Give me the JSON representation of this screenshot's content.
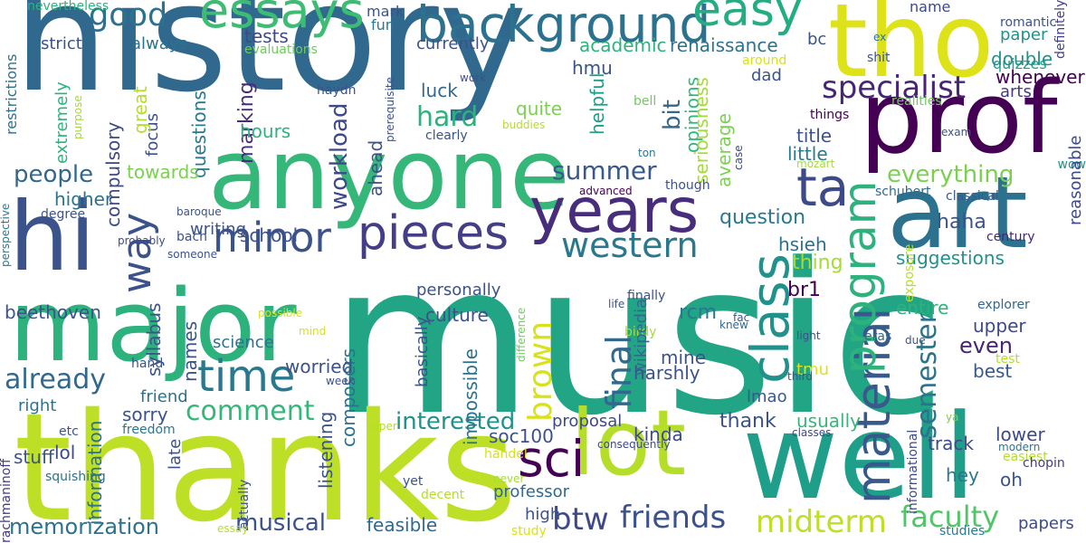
{
  "words": [
    {
      "text": "history",
      "color": "#31688e"
    },
    {
      "text": "music",
      "color": "#21a585"
    },
    {
      "text": "thanks",
      "color": "#bddf26"
    },
    {
      "text": "anyone",
      "color": "#35b779"
    },
    {
      "text": "prof",
      "color": "#440154"
    },
    {
      "text": "major",
      "color": "#2db27d"
    },
    {
      "text": "tho",
      "color": "#dde318"
    },
    {
      "text": "well",
      "color": "#1f9e89"
    },
    {
      "text": "art",
      "color": "#2c728e"
    },
    {
      "text": "lot",
      "color": "#b5de2b"
    },
    {
      "text": "hi",
      "color": "#3b528b"
    },
    {
      "text": "years",
      "color": "#472d7b"
    },
    {
      "text": "background",
      "color": "#2c728e"
    },
    {
      "text": "essays",
      "color": "#3dbc74"
    },
    {
      "text": "easy",
      "color": "#25ac82"
    },
    {
      "text": "pieces",
      "color": "#433e85"
    },
    {
      "text": "minor",
      "color": "#3b528b"
    },
    {
      "text": "time",
      "color": "#2a788e"
    },
    {
      "text": "sci",
      "color": "#440154"
    },
    {
      "text": "ta",
      "color": "#3e4989"
    },
    {
      "text": "class",
      "color": "#21918c"
    },
    {
      "text": "western",
      "color": "#2a788e"
    },
    {
      "text": "material",
      "color": "#38598c"
    },
    {
      "text": "program",
      "color": "#2db27d"
    },
    {
      "text": "specialist",
      "color": "#482475"
    },
    {
      "text": "way",
      "color": "#3b528b"
    },
    {
      "text": "good",
      "color": "#2c728e"
    },
    {
      "text": "already",
      "color": "#31688e"
    },
    {
      "text": "comment",
      "color": "#35b779"
    },
    {
      "text": "btw",
      "color": "#3e4989"
    },
    {
      "text": "friends",
      "color": "#3b528b"
    },
    {
      "text": "midterm",
      "color": "#bddf26"
    },
    {
      "text": "faculty",
      "color": "#52c569"
    },
    {
      "text": "final",
      "color": "#31688e"
    },
    {
      "text": "brown",
      "color": "#d8e219"
    },
    {
      "text": "semester",
      "color": "#2c728e"
    },
    {
      "text": "summer",
      "color": "#38598c"
    },
    {
      "text": "interested",
      "color": "#21918c"
    },
    {
      "text": "everything",
      "color": "#7ad151"
    },
    {
      "text": "hard",
      "color": "#2db27d"
    },
    {
      "text": "workload",
      "color": "#3e4989"
    },
    {
      "text": "musical",
      "color": "#3b528b"
    },
    {
      "text": "memorization",
      "color": "#2c728e"
    },
    {
      "text": "people",
      "color": "#31688e"
    },
    {
      "text": "marking",
      "color": "#472d7b"
    },
    {
      "text": "questions",
      "color": "#2a788e"
    },
    {
      "text": "compulsory",
      "color": "#3e4989"
    },
    {
      "text": "academic",
      "color": "#2db27d"
    },
    {
      "text": "renaissance",
      "color": "#2c728e"
    },
    {
      "text": "currently",
      "color": "#3b528b"
    },
    {
      "text": "tests",
      "color": "#3e4989"
    },
    {
      "text": "always",
      "color": "#2c728e"
    },
    {
      "text": "strict",
      "color": "#3b528b"
    },
    {
      "text": "fun",
      "color": "#2a788e"
    },
    {
      "text": "mark",
      "color": "#3b528b"
    },
    {
      "text": "evaluations",
      "color": "#6ccd5a"
    },
    {
      "text": "nevertheless",
      "color": "#2db27d"
    },
    {
      "text": "quizzes",
      "color": "#1f9e89"
    },
    {
      "text": "paper",
      "color": "#21918c"
    },
    {
      "text": "double",
      "color": "#21918c"
    },
    {
      "text": "whenever",
      "color": "#440154"
    },
    {
      "text": "arts",
      "color": "#443a83"
    },
    {
      "text": "romantic",
      "color": "#3b528b"
    },
    {
      "text": "definitely",
      "color": "#433e85"
    },
    {
      "text": "name",
      "color": "#3e4989"
    },
    {
      "text": "ex",
      "color": "#2a788e"
    },
    {
      "text": "shit",
      "color": "#3b528b"
    },
    {
      "text": "hmu",
      "color": "#3b528b"
    },
    {
      "text": "luck",
      "color": "#31688e"
    },
    {
      "text": "quite",
      "color": "#7ad151"
    },
    {
      "text": "helpful",
      "color": "#1f9e89"
    },
    {
      "text": "opinions",
      "color": "#35b779"
    },
    {
      "text": "bit",
      "color": "#31688e"
    },
    {
      "text": "dad",
      "color": "#3b528b"
    },
    {
      "text": "bc",
      "color": "#3b528b"
    },
    {
      "text": "around",
      "color": "#d8e219"
    },
    {
      "text": "realities",
      "color": "#6ccd5a"
    },
    {
      "text": "things",
      "color": "#440154"
    },
    {
      "text": "exam",
      "color": "#3b528b"
    },
    {
      "text": "wow",
      "color": "#21918c"
    },
    {
      "text": "bell",
      "color": "#6ccd5a"
    },
    {
      "text": "seriousness",
      "color": "#a5db36"
    },
    {
      "text": "average",
      "color": "#7ad151"
    },
    {
      "text": "title",
      "color": "#3b528b"
    },
    {
      "text": "little",
      "color": "#2a788e"
    },
    {
      "text": "case",
      "color": "#3e4989"
    },
    {
      "text": "mozart",
      "color": "#a5db36"
    },
    {
      "text": "classical",
      "color": "#38598c"
    },
    {
      "text": "schubert",
      "color": "#31688e"
    },
    {
      "text": "reasonable",
      "color": "#3e4989"
    },
    {
      "text": "century",
      "color": "#482475"
    },
    {
      "text": "haha",
      "color": "#3b528b"
    },
    {
      "text": "question",
      "color": "#2a788e"
    },
    {
      "text": "hsieh",
      "color": "#2c728e"
    },
    {
      "text": "thing",
      "color": "#a5db36"
    },
    {
      "text": "suggestions",
      "color": "#21918c"
    },
    {
      "text": "entire",
      "color": "#2db27d"
    },
    {
      "text": "exposure",
      "color": "#b5de2b"
    },
    {
      "text": "finally",
      "color": "#3b528b"
    },
    {
      "text": "birdy",
      "color": "#a5db36"
    },
    {
      "text": "explorer",
      "color": "#31688e"
    },
    {
      "text": "upper",
      "color": "#3e4989"
    },
    {
      "text": "even",
      "color": "#482475"
    },
    {
      "text": "best",
      "color": "#38598c"
    },
    {
      "text": "test",
      "color": "#b5de2b"
    },
    {
      "text": "usually",
      "color": "#35b779"
    },
    {
      "text": "thank",
      "color": "#3b528b"
    },
    {
      "text": "track",
      "color": "#3e4989"
    },
    {
      "text": "lower",
      "color": "#3e4989"
    },
    {
      "text": "ya",
      "color": "#7ad151"
    },
    {
      "text": "hey",
      "color": "#2a788e"
    },
    {
      "text": "oh",
      "color": "#3b528b"
    },
    {
      "text": "modern",
      "color": "#2a788e"
    },
    {
      "text": "easiest",
      "color": "#b5de2b"
    },
    {
      "text": "chopin",
      "color": "#443a83"
    },
    {
      "text": "papers",
      "color": "#3e4989"
    },
    {
      "text": "studies",
      "color": "#2a788e"
    },
    {
      "text": "informational",
      "color": "#3e4989"
    },
    {
      "text": "classes",
      "color": "#3e4989"
    },
    {
      "text": "br1",
      "color": "#440154"
    },
    {
      "text": "rcm",
      "color": "#2a788e"
    },
    {
      "text": "wikipedia",
      "color": "#31688e"
    },
    {
      "text": "mine",
      "color": "#3b528b"
    },
    {
      "text": "harshly",
      "color": "#3b528b"
    },
    {
      "text": "lmao",
      "color": "#38598c"
    },
    {
      "text": "tmu",
      "color": "#dde318"
    },
    {
      "text": "third",
      "color": "#3b528b"
    },
    {
      "text": "light",
      "color": "#3b528b"
    },
    {
      "text": "eras",
      "color": "#31688e"
    },
    {
      "text": "due",
      "color": "#3b528b"
    },
    {
      "text": "fac",
      "color": "#3b528b"
    },
    {
      "text": "knew",
      "color": "#31688e"
    },
    {
      "text": "life",
      "color": "#3b528b"
    },
    {
      "text": "difference",
      "color": "#6ccd5a"
    },
    {
      "text": "kinda",
      "color": "#3e4989"
    },
    {
      "text": "proposal",
      "color": "#3e4989"
    },
    {
      "text": "soc100",
      "color": "#3b528b"
    },
    {
      "text": "consequently",
      "color": "#3e4989"
    },
    {
      "text": "professor",
      "color": "#31688e"
    },
    {
      "text": "high",
      "color": "#3b528b"
    },
    {
      "text": "feasible",
      "color": "#31688e"
    },
    {
      "text": "culture",
      "color": "#3b528b"
    },
    {
      "text": "personally",
      "color": "#3b528b"
    },
    {
      "text": "impossible",
      "color": "#2c728e"
    },
    {
      "text": "basically",
      "color": "#3b528b"
    },
    {
      "text": "composers",
      "color": "#2c728e"
    },
    {
      "text": "listening",
      "color": "#3b528b"
    },
    {
      "text": "super",
      "color": "#b5de2b"
    },
    {
      "text": "handel",
      "color": "#d8e219"
    },
    {
      "text": "decent",
      "color": "#b5de2b"
    },
    {
      "text": "yet",
      "color": "#3b528b"
    },
    {
      "text": "study",
      "color": "#d8e219"
    },
    {
      "text": "never",
      "color": "#a5db36"
    },
    {
      "text": "actually",
      "color": "#3b528b"
    },
    {
      "text": "essay",
      "color": "#b5de2b"
    },
    {
      "text": "late",
      "color": "#3b528b"
    },
    {
      "text": "freedom",
      "color": "#2a788e"
    },
    {
      "text": "etc",
      "color": "#3b528b"
    },
    {
      "text": "rachmaninoff",
      "color": "#443a83"
    },
    {
      "text": "information",
      "color": "#2c728e"
    },
    {
      "text": "lol",
      "color": "#3e4989"
    },
    {
      "text": "stuff",
      "color": "#3b528b"
    },
    {
      "text": "squishing",
      "color": "#2c728e"
    },
    {
      "text": "hand",
      "color": "#3b528b"
    },
    {
      "text": "mind",
      "color": "#d8e219"
    },
    {
      "text": "beethoven",
      "color": "#3b528b"
    },
    {
      "text": "right",
      "color": "#2c728e"
    },
    {
      "text": "friend",
      "color": "#2c728e"
    },
    {
      "text": "sorry",
      "color": "#3b528b"
    },
    {
      "text": "worried",
      "color": "#3b528b"
    },
    {
      "text": "names",
      "color": "#3b528b"
    },
    {
      "text": "syllabus",
      "color": "#3b528b"
    },
    {
      "text": "science",
      "color": "#2c728e"
    },
    {
      "text": "possible",
      "color": "#d8e219"
    },
    {
      "text": "week",
      "color": "#3b528b"
    },
    {
      "text": "perspective",
      "color": "#2a788e"
    },
    {
      "text": "degree",
      "color": "#3b528b"
    },
    {
      "text": "probably",
      "color": "#3e4989"
    },
    {
      "text": "bach",
      "color": "#3b528b"
    },
    {
      "text": "writing",
      "color": "#3b528b"
    },
    {
      "text": "someone",
      "color": "#3b528b"
    },
    {
      "text": "school",
      "color": "#3b528b"
    },
    {
      "text": "baroque",
      "color": "#3b528b"
    },
    {
      "text": "higher",
      "color": "#2c728e"
    },
    {
      "text": "towards",
      "color": "#7ad151"
    },
    {
      "text": "focus",
      "color": "#3b528b"
    },
    {
      "text": "great",
      "color": "#b5de2b"
    },
    {
      "text": "extremely",
      "color": "#2db27d"
    },
    {
      "text": "purpose",
      "color": "#a5db36"
    },
    {
      "text": "restrictions",
      "color": "#2c728e"
    },
    {
      "text": "hours",
      "color": "#2db27d"
    },
    {
      "text": "ahead",
      "color": "#3b528b"
    },
    {
      "text": "haydn",
      "color": "#3b528b"
    },
    {
      "text": "prerequisite",
      "color": "#3b528b"
    },
    {
      "text": "work",
      "color": "#3b528b"
    },
    {
      "text": "buddies",
      "color": "#b5de2b"
    },
    {
      "text": "clearly",
      "color": "#3b528b"
    },
    {
      "text": "ton",
      "color": "#2a788e"
    },
    {
      "text": "though",
      "color": "#3b528b"
    },
    {
      "text": "advanced",
      "color": "#440154"
    }
  ]
}
